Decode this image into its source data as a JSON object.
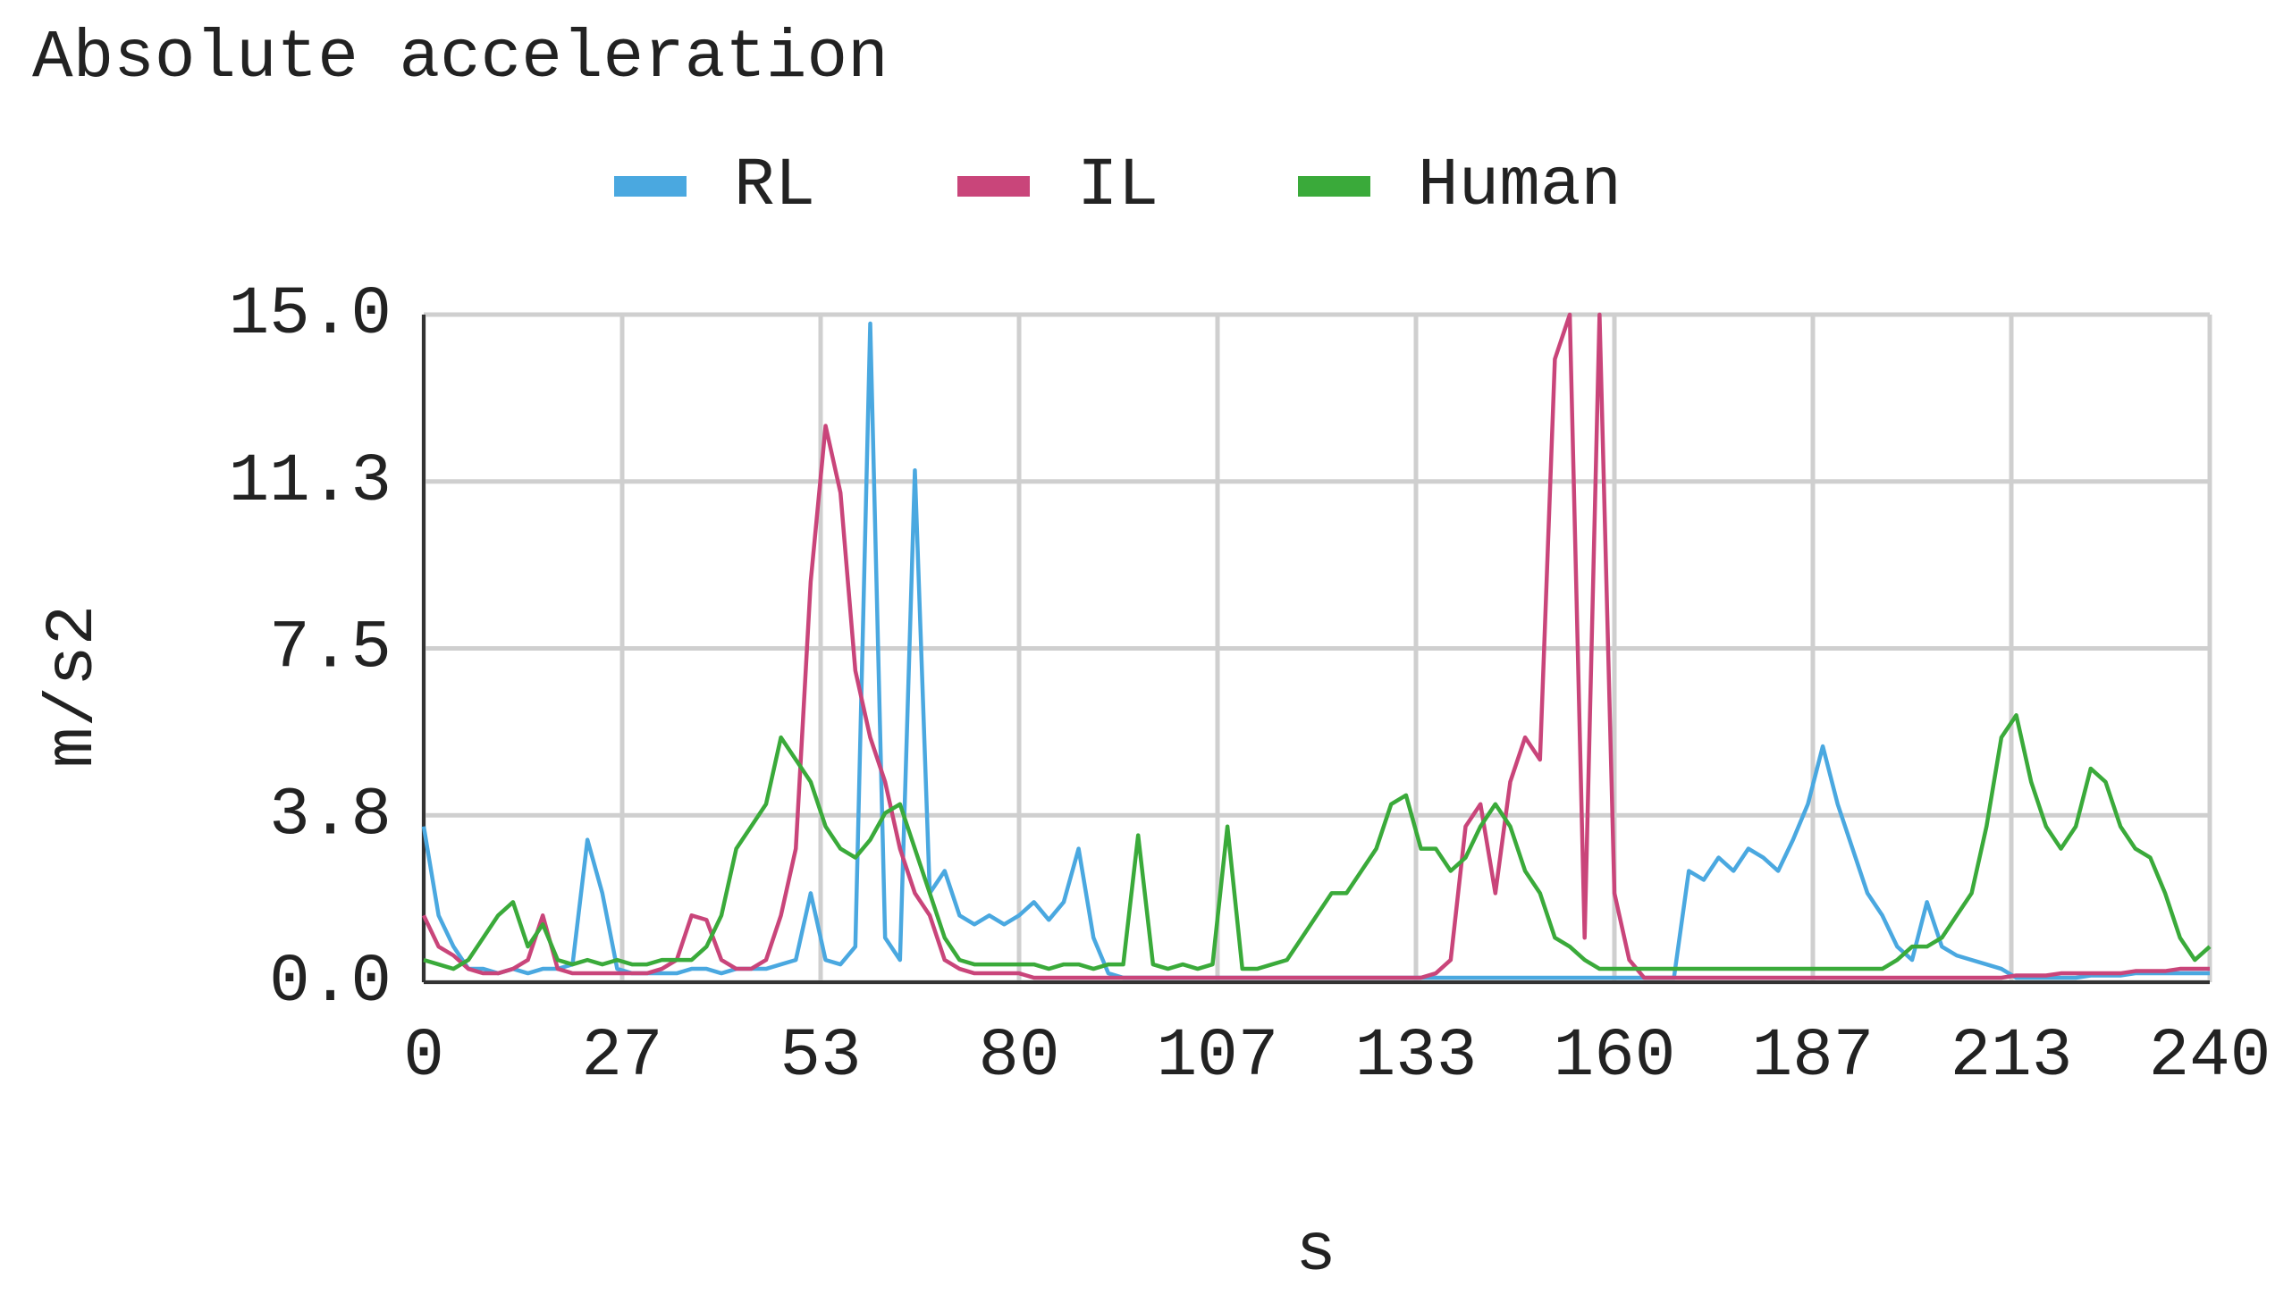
{
  "chart_data": {
    "type": "line",
    "title": "Absolute acceleration",
    "x_label": "s",
    "y_label": "m/s2",
    "x": [
      0,
      2,
      4,
      6,
      8,
      10,
      12,
      14,
      16,
      18,
      20,
      22,
      24,
      26,
      28,
      30,
      32,
      34,
      36,
      38,
      40,
      42,
      44,
      46,
      48,
      50,
      52,
      54,
      56,
      58,
      60,
      62,
      64,
      66,
      68,
      70,
      72,
      74,
      76,
      78,
      80,
      82,
      84,
      86,
      88,
      90,
      92,
      94,
      96,
      98,
      100,
      102,
      104,
      106,
      108,
      110,
      112,
      114,
      116,
      118,
      120,
      122,
      124,
      126,
      128,
      130,
      132,
      134,
      136,
      138,
      140,
      142,
      144,
      146,
      148,
      150,
      152,
      154,
      156,
      158,
      160,
      162,
      164,
      166,
      168,
      170,
      172,
      174,
      176,
      178,
      180,
      182,
      184,
      186,
      188,
      190,
      192,
      194,
      196,
      198,
      200,
      202,
      204,
      206,
      208,
      210,
      212,
      214,
      216,
      218,
      220,
      222,
      224,
      226,
      228,
      230,
      232,
      234,
      236,
      238,
      240
    ],
    "series": [
      {
        "name": "RL",
        "color": "#4aa8e0",
        "values": [
          3.5,
          1.5,
          0.8,
          0.3,
          0.3,
          0.2,
          0.3,
          0.2,
          0.3,
          0.3,
          0.4,
          3.2,
          2,
          0.3,
          0.2,
          0.2,
          0.2,
          0.2,
          0.3,
          0.3,
          0.2,
          0.3,
          0.3,
          0.3,
          0.4,
          0.5,
          2,
          0.5,
          0.4,
          0.8,
          14.8,
          1,
          0.5,
          11.5,
          2,
          2.5,
          1.5,
          1.3,
          1.5,
          1.3,
          1.5,
          1.8,
          1.4,
          1.8,
          3,
          1,
          0.2,
          0.1,
          0.1,
          0.1,
          0.1,
          0.1,
          0.1,
          0.1,
          0.1,
          0.1,
          0.1,
          0.1,
          0.1,
          0.1,
          0.1,
          0.1,
          0.1,
          0.1,
          0.1,
          0.1,
          0.1,
          0.1,
          0.1,
          0.1,
          0.1,
          0.1,
          0.1,
          0.1,
          0.1,
          0.1,
          0.1,
          0.1,
          0.1,
          0.1,
          0.1,
          0.1,
          0.1,
          0.1,
          0.1,
          2.5,
          2.3,
          2.8,
          2.5,
          3,
          2.8,
          2.5,
          3.2,
          4,
          5.3,
          4,
          3,
          2,
          1.5,
          0.8,
          0.5,
          1.8,
          0.8,
          0.6,
          0.5,
          0.4,
          0.3,
          0.1,
          0.1,
          0.1,
          0.1,
          0.1,
          0.15,
          0.15,
          0.15,
          0.2,
          0.2,
          0.2,
          0.2,
          0.2,
          0.2
        ]
      },
      {
        "name": "IL",
        "color": "#c9457a",
        "values": [
          1.5,
          0.8,
          0.6,
          0.3,
          0.2,
          0.2,
          0.3,
          0.5,
          1.5,
          0.3,
          0.2,
          0.2,
          0.2,
          0.2,
          0.2,
          0.2,
          0.3,
          0.5,
          1.5,
          1.4,
          0.5,
          0.3,
          0.3,
          0.5,
          1.5,
          3,
          9,
          12.5,
          11,
          7,
          5.5,
          4.5,
          3,
          2,
          1.5,
          0.5,
          0.3,
          0.2,
          0.2,
          0.2,
          0.2,
          0.1,
          0.1,
          0.1,
          0.1,
          0.1,
          0.1,
          0.1,
          0.1,
          0.1,
          0.1,
          0.1,
          0.1,
          0.1,
          0.1,
          0.1,
          0.1,
          0.1,
          0.1,
          0.1,
          0.1,
          0.1,
          0.1,
          0.1,
          0.1,
          0.1,
          0.1,
          0.1,
          0.2,
          0.5,
          3.5,
          4,
          2,
          4.5,
          5.5,
          5,
          14,
          15,
          1,
          15,
          2,
          0.5,
          0.1,
          0.1,
          0.1,
          0.1,
          0.1,
          0.1,
          0.1,
          0.1,
          0.1,
          0.1,
          0.1,
          0.1,
          0.1,
          0.1,
          0.1,
          0.1,
          0.1,
          0.1,
          0.1,
          0.1,
          0.1,
          0.1,
          0.1,
          0.1,
          0.1,
          0.15,
          0.15,
          0.15,
          0.2,
          0.2,
          0.2,
          0.2,
          0.2,
          0.25,
          0.25,
          0.25,
          0.3,
          0.3,
          0.3
        ]
      },
      {
        "name": "Human",
        "color": "#3aaa3a",
        "values": [
          0.5,
          0.4,
          0.3,
          0.5,
          1,
          1.5,
          1.8,
          0.8,
          1.3,
          0.5,
          0.4,
          0.5,
          0.4,
          0.5,
          0.4,
          0.4,
          0.5,
          0.5,
          0.5,
          0.8,
          1.5,
          3,
          3.5,
          4,
          5.5,
          5,
          4.5,
          3.5,
          3,
          2.8,
          3.2,
          3.8,
          4,
          3,
          2,
          1,
          0.5,
          0.4,
          0.4,
          0.4,
          0.4,
          0.4,
          0.3,
          0.4,
          0.4,
          0.3,
          0.4,
          0.4,
          3.3,
          0.4,
          0.3,
          0.4,
          0.3,
          0.4,
          3.5,
          0.3,
          0.3,
          0.4,
          0.5,
          1,
          1.5,
          2,
          2,
          2.5,
          3,
          4,
          4.2,
          3,
          3,
          2.5,
          2.8,
          3.5,
          4,
          3.5,
          2.5,
          2,
          1,
          0.8,
          0.5,
          0.3,
          0.3,
          0.3,
          0.3,
          0.3,
          0.3,
          0.3,
          0.3,
          0.3,
          0.3,
          0.3,
          0.3,
          0.3,
          0.3,
          0.3,
          0.3,
          0.3,
          0.3,
          0.3,
          0.3,
          0.5,
          0.8,
          0.8,
          1,
          1.5,
          2,
          3.5,
          5.5,
          6,
          4.5,
          3.5,
          3,
          3.5,
          4.8,
          4.5,
          3.5,
          3,
          2.8,
          2,
          1,
          0.5,
          0.8
        ]
      }
    ],
    "xlim": [
      0,
      240
    ],
    "xticks": [
      0,
      {
        "value": 26.667,
        "label": "27"
      },
      {
        "value": 53.333,
        "label": "53"
      },
      80,
      {
        "value": 106.667,
        "label": "107"
      },
      {
        "value": 133.333,
        "label": "133"
      },
      160,
      {
        "value": 186.667,
        "label": "187"
      },
      {
        "value": 213.333,
        "label": "213"
      },
      240
    ],
    "ylim": [
      0,
      15
    ],
    "yticks": [
      {
        "value": 0,
        "label": "0.0"
      },
      {
        "value": 3.75,
        "label": "3.8"
      },
      {
        "value": 7.5,
        "label": "7.5"
      },
      {
        "value": 11.25,
        "label": "11.3"
      },
      {
        "value": 15,
        "label": "15.0"
      }
    ],
    "grid": true
  }
}
